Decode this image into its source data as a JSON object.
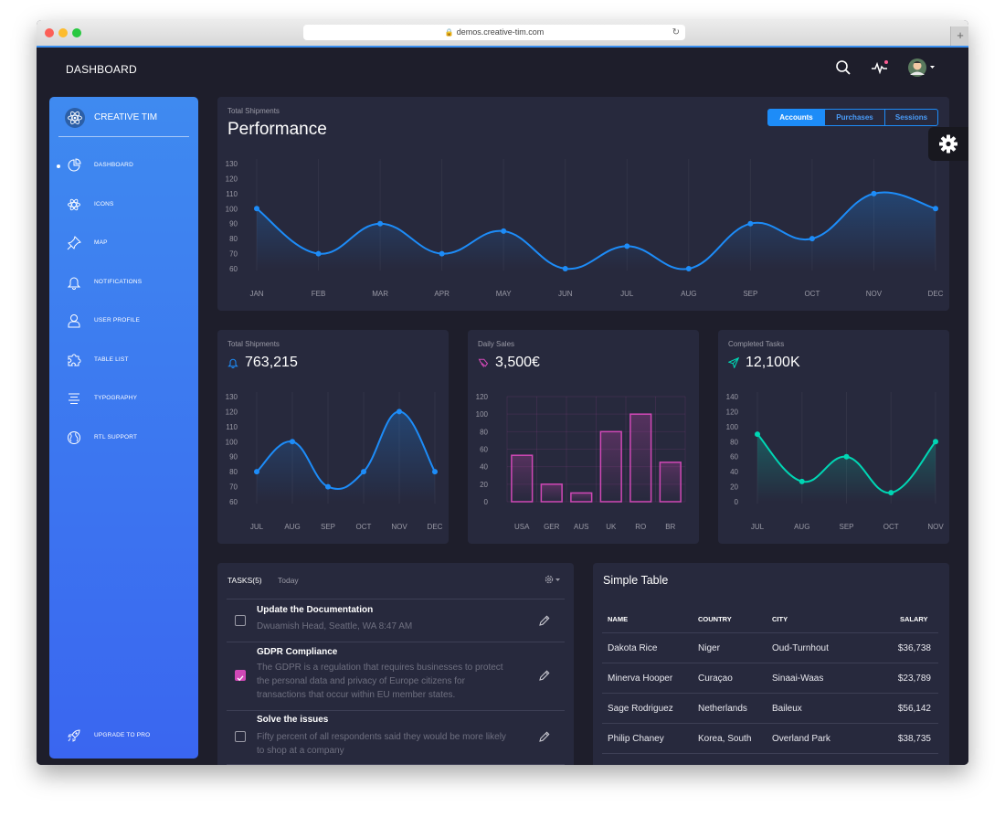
{
  "browser": {
    "url": "demos.creative-tim.com",
    "newtab": "+"
  },
  "navbar": {
    "brand": "DASHBOARD"
  },
  "sidebar": {
    "brand": "CREATIVE TIM",
    "items": [
      {
        "label": "DASHBOARD"
      },
      {
        "label": "ICONS"
      },
      {
        "label": "MAP"
      },
      {
        "label": "NOTIFICATIONS"
      },
      {
        "label": "USER PROFILE"
      },
      {
        "label": "TABLE LIST"
      },
      {
        "label": "TYPOGRAPHY"
      },
      {
        "label": "RTL SUPPORT"
      }
    ],
    "upgrade": "UPGRADE TO PRO"
  },
  "performance": {
    "subtitle": "Total Shipments",
    "title": "Performance",
    "buttons": [
      "Accounts",
      "Purchases",
      "Sessions"
    ]
  },
  "cards": [
    {
      "subtitle": "Total Shipments",
      "value": "763,215"
    },
    {
      "subtitle": "Daily Sales",
      "value": "3,500€"
    },
    {
      "subtitle": "Completed Tasks",
      "value": "12,100K"
    }
  ],
  "tasks": {
    "title": "TASKS(5)",
    "tab": "Today",
    "items": [
      {
        "title": "Update the Documentation",
        "desc": "Dwuamish Head, Seattle, WA 8:47 AM",
        "checked": false
      },
      {
        "title": "GDPR Compliance",
        "desc": "The GDPR is a regulation that requires businesses to protect the personal data and privacy of Europe citizens for transactions that occur within EU member states.",
        "checked": true
      },
      {
        "title": "Solve the issues",
        "desc": "Fifty percent of all respondents said they would be more likely to shop at a company",
        "checked": false
      }
    ]
  },
  "table": {
    "title": "Simple Table",
    "headers": [
      "NAME",
      "COUNTRY",
      "CITY",
      "SALARY"
    ],
    "rows": [
      [
        "Dakota Rice",
        "Niger",
        "Oud-Turnhout",
        "$36,738"
      ],
      [
        "Minerva Hooper",
        "Curaçao",
        "Sinaai-Waas",
        "$23,789"
      ],
      [
        "Sage Rodriguez",
        "Netherlands",
        "Baileux",
        "$56,142"
      ],
      [
        "Philip Chaney",
        "Korea, South",
        "Overland Park",
        "$38,735"
      ]
    ]
  },
  "colors": {
    "blue": "#1d8cf8",
    "pink": "#d048b6",
    "teal": "#00d6b4",
    "card": "#27293d",
    "bg": "#1e1e2b"
  },
  "chart_data": [
    {
      "type": "line",
      "title": "Performance",
      "categories": [
        "JAN",
        "FEB",
        "MAR",
        "APR",
        "MAY",
        "JUN",
        "JUL",
        "AUG",
        "SEP",
        "OCT",
        "NOV",
        "DEC"
      ],
      "values": [
        100,
        70,
        90,
        70,
        85,
        60,
        75,
        60,
        90,
        80,
        110,
        100
      ],
      "yticks": [
        60,
        70,
        80,
        90,
        100,
        110,
        120,
        130
      ],
      "ylim": [
        60,
        130
      ],
      "color": "#1d8cf8"
    },
    {
      "type": "line",
      "title": "763,215",
      "categories": [
        "JUL",
        "AUG",
        "SEP",
        "OCT",
        "NOV",
        "DEC"
      ],
      "values": [
        80,
        100,
        70,
        80,
        120,
        80
      ],
      "yticks": [
        60,
        70,
        80,
        90,
        100,
        110,
        120,
        130
      ],
      "ylim": [
        60,
        130
      ],
      "color": "#1d8cf8"
    },
    {
      "type": "bar",
      "title": "3,500€",
      "categories": [
        "USA",
        "GER",
        "AUS",
        "UK",
        "RO",
        "BR"
      ],
      "values": [
        53,
        20,
        10,
        80,
        100,
        45
      ],
      "yticks": [
        0,
        20,
        40,
        60,
        80,
        100,
        120
      ],
      "ylim": [
        0,
        120
      ],
      "color": "#d048b6"
    },
    {
      "type": "line",
      "title": "12,100K",
      "categories": [
        "JUL",
        "AUG",
        "SEP",
        "OCT",
        "NOV"
      ],
      "values": [
        90,
        27,
        60,
        12,
        80
      ],
      "yticks": [
        0,
        20,
        40,
        60,
        80,
        100,
        120,
        140
      ],
      "ylim": [
        0,
        140
      ],
      "color": "#00d6b4"
    }
  ]
}
